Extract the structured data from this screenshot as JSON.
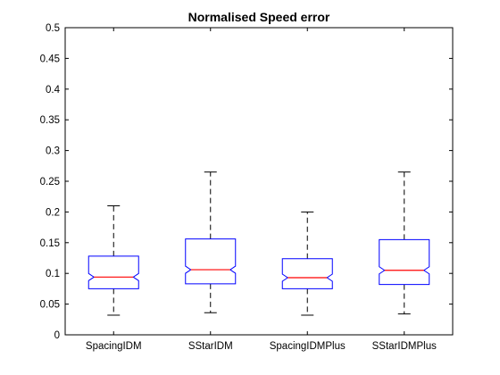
{
  "chart_data": {
    "type": "box",
    "title": "Normalised Speed error",
    "xlabel": "",
    "ylabel": "",
    "ylim": [
      0,
      0.5
    ],
    "yticks": [
      0,
      0.05,
      0.1,
      0.15,
      0.2,
      0.25,
      0.3,
      0.35,
      0.4,
      0.45,
      0.5
    ],
    "ytick_labels": [
      "0",
      "0.05",
      "0.1",
      "0.15",
      "0.2",
      "0.25",
      "0.3",
      "0.35",
      "0.4",
      "0.45",
      "0.5"
    ],
    "categories": [
      "SpacingIDM",
      "SStarIDM",
      "SpacingIDMPlus",
      "SStarIDMPlus"
    ],
    "notched": true,
    "boxes": [
      {
        "whisker_low": 0.032,
        "q1": 0.075,
        "median": 0.094,
        "q3": 0.128,
        "whisker_high": 0.21
      },
      {
        "whisker_low": 0.036,
        "q1": 0.083,
        "median": 0.106,
        "q3": 0.156,
        "whisker_high": 0.265
      },
      {
        "whisker_low": 0.032,
        "q1": 0.075,
        "median": 0.093,
        "q3": 0.124,
        "whisker_high": 0.2
      },
      {
        "whisker_low": 0.034,
        "q1": 0.082,
        "median": 0.105,
        "q3": 0.155,
        "whisker_high": 0.265
      }
    ],
    "box_color": "#0000ff",
    "median_color": "#ff0000",
    "whisker_color": "#000000",
    "grid": false
  }
}
